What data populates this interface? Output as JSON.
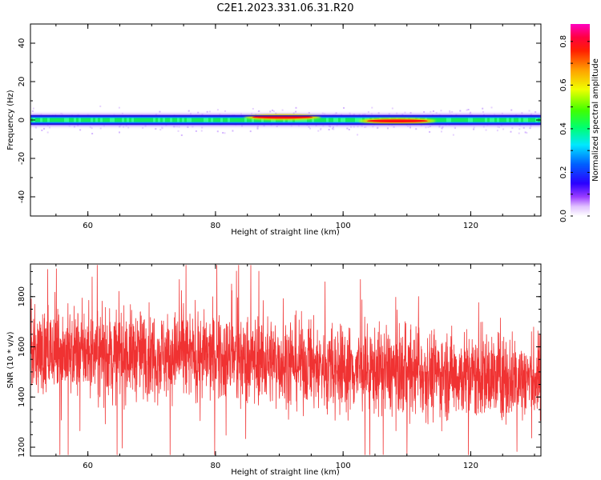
{
  "figure": {
    "title": "C2E1.2023.331.06.31.R20"
  },
  "chart_data": [
    {
      "type": "heatmap",
      "xlabel": "Height of straight line (km)",
      "ylabel": "Frequency (Hz)",
      "xlim": [
        51,
        131
      ],
      "ylim": [
        -50,
        50
      ],
      "x_ticks": [
        60,
        80,
        100,
        120
      ],
      "y_ticks": [
        -40,
        -20,
        0,
        20,
        40
      ],
      "band": {
        "center_frequency_hz": 0,
        "halo_halfwidth_hz": 5,
        "core_halfwidth_hz": 2.5,
        "peaks": [
          {
            "x_from": 85,
            "x_to": 96,
            "frequency_hz": 1.5,
            "amplitude": 0.85
          },
          {
            "x_from": 103,
            "x_to": 114,
            "frequency_hz": -0.5,
            "amplitude": 0.9
          }
        ]
      },
      "colorbar": {
        "label": "Normalized spectral amplitude",
        "range": [
          0,
          0.88
        ],
        "ticks": [
          0.0,
          0.2,
          0.4,
          0.6,
          0.8
        ],
        "colormap": "gist_ncar-like: white → violet → blue → cyan → green → yellow → orange → red → magenta"
      },
      "grid": false
    },
    {
      "type": "line",
      "xlabel": "Height of straight line (km)",
      "ylabel": "SNR (10 * v/v)",
      "xlim": [
        51,
        131
      ],
      "ylim": [
        1165,
        1930
      ],
      "x_ticks": [
        60,
        80,
        100,
        120
      ],
      "y_ticks": [
        1200,
        1400,
        1600,
        1800
      ],
      "series": [
        {
          "color": "#f03232",
          "trend": [
            {
              "x": 51,
              "y": 1580
            },
            {
              "x": 70,
              "y": 1570
            },
            {
              "x": 90,
              "y": 1545
            },
            {
              "x": 100,
              "y": 1510
            },
            {
              "x": 110,
              "y": 1500
            },
            {
              "x": 131,
              "y": 1470
            }
          ],
          "spread": 85,
          "observed_max": 1925,
          "observed_min": 1170
        }
      ],
      "grid": false
    }
  ]
}
